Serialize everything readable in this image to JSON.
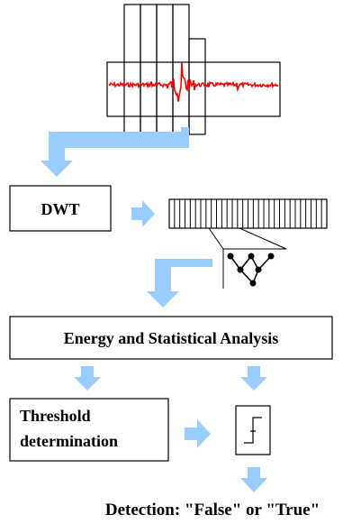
{
  "boxes": {
    "dwt_label": "DWT",
    "analysis_label": "Energy and Statistical Analysis",
    "threshold_label_line1": "Threshold",
    "threshold_label_line2": "determination"
  },
  "result": {
    "label": "Detection: \"False\" or \"True\""
  },
  "colors": {
    "arrow": "#99ccff",
    "signal": "#ff0000",
    "stroke": "#000000"
  },
  "icons": {
    "signal": "seismic-signal-icon",
    "windows": "sliding-windows-icon",
    "coefficients": "wavelet-coefficients-icon",
    "tree": "wavelet-tree-icon",
    "step": "step-function-icon",
    "arrow": "flow-arrow-icon"
  }
}
